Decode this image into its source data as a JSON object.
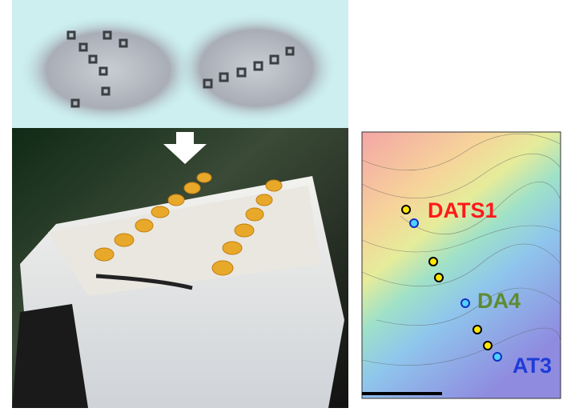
{
  "stations": [
    {
      "label": "DATS1"
    },
    {
      "label": "DA4"
    },
    {
      "label": "AT3"
    }
  ]
}
